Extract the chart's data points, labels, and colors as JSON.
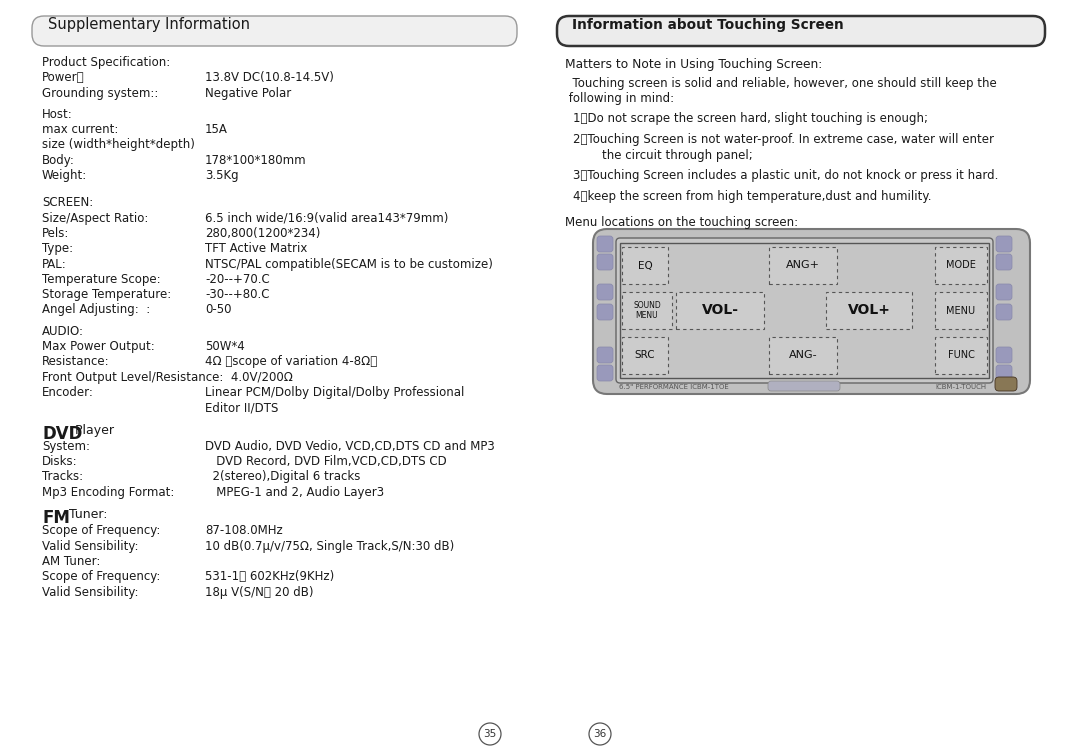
{
  "bg_color": "#ffffff",
  "left_box_title": "Supplementary Information",
  "right_box_title": "Information about Touching Screen",
  "right_intro": "Matters to Note in Using Touching Screen:",
  "right_para1": "  Touching screen is solid and reliable, however, one should still keep the",
  "right_para2": " following in mind:",
  "right_items": [
    [
      "1、Do not scrape the screen hard, slight touching is enough;",
      ""
    ],
    [
      "2、Touching Screen is not water-proof. In extreme case, water will enter",
      "    the circuit through panel;"
    ],
    [
      "3、Touching Screen includes a plastic unit, do not knock or press it hard.",
      ""
    ],
    [
      "4、keep the screen from high temperature,dust and humility.",
      ""
    ]
  ],
  "menu_label": "Menu locations on the touching screen:",
  "page_left": "35",
  "page_right": "36"
}
